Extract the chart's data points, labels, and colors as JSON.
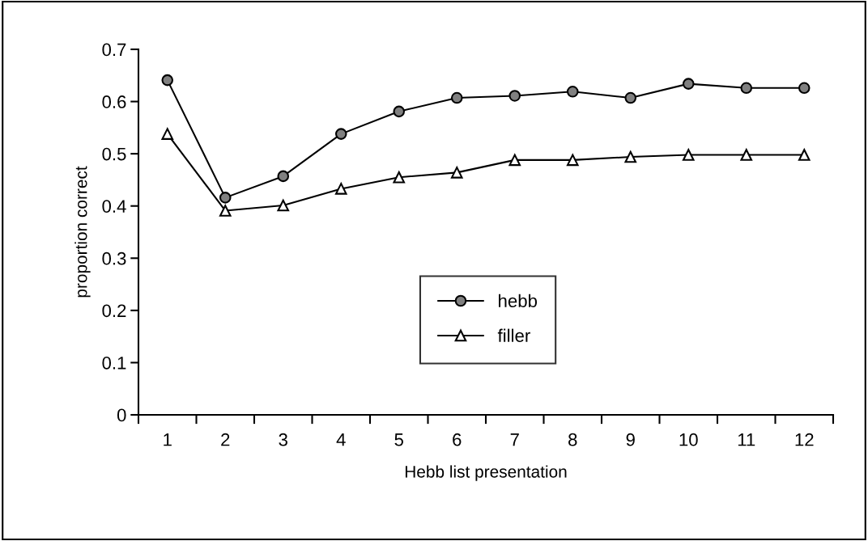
{
  "chart_data": {
    "type": "line",
    "xlabel": "Hebb list presentation",
    "ylabel": "proportion correct",
    "categories": [
      "1",
      "2",
      "3",
      "4",
      "5",
      "6",
      "7",
      "8",
      "9",
      "10",
      "11",
      "12"
    ],
    "series": [
      {
        "name": "hebb",
        "color": "#808080",
        "marker": "circle",
        "values": [
          0.641,
          0.416,
          0.457,
          0.538,
          0.581,
          0.607,
          0.611,
          0.619,
          0.607,
          0.634,
          0.626,
          0.626
        ]
      },
      {
        "name": "filler",
        "color": "#ffffff",
        "marker": "triangle",
        "values": [
          0.538,
          0.391,
          0.401,
          0.433,
          0.455,
          0.464,
          0.488,
          0.488,
          0.494,
          0.498,
          0.498,
          0.498
        ]
      }
    ],
    "ylim": [
      0,
      0.7
    ],
    "yticks": [
      0,
      0.1,
      0.2,
      0.3,
      0.4,
      0.5,
      0.6,
      0.7
    ],
    "grid": false,
    "legend": "bottom center",
    "line_style": "solid"
  }
}
